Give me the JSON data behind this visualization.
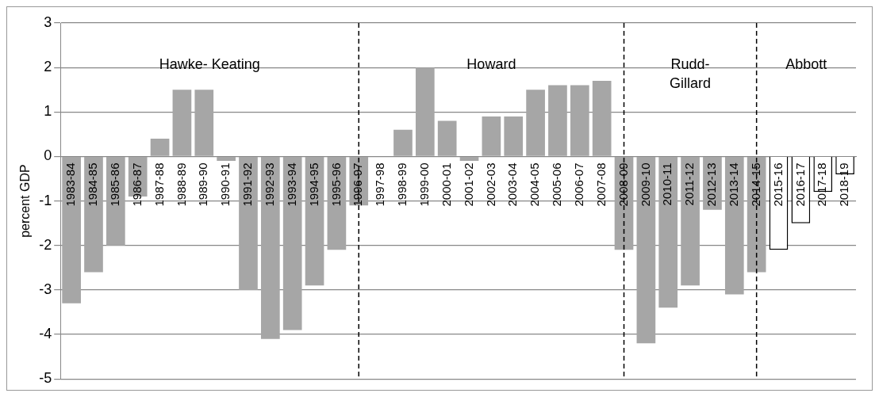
{
  "chart_data": {
    "type": "bar",
    "ylabel": "percent GDP",
    "categories": [
      "1983-84",
      "1984-85",
      "1985-86",
      "1986-87",
      "1987-88",
      "1988-89",
      "1989-90",
      "1990-91",
      "1991-92",
      "1992-93",
      "1993-94",
      "1994-95",
      "1995-96",
      "1996-97",
      "1997-98",
      "1998-99",
      "1999-00",
      "2000-01",
      "2001-02",
      "2002-03",
      "2003-04",
      "2004-05",
      "2005-06",
      "2006-07",
      "2007-08",
      "2008-09",
      "2009-10",
      "2010-11",
      "2011-12",
      "2012-13",
      "2013-14",
      "2014-15",
      "2015-16",
      "2016-17",
      "2017-18",
      "2018-19"
    ],
    "values": [
      -3.3,
      -2.6,
      -2.0,
      -0.9,
      0.4,
      1.5,
      1.5,
      -0.1,
      -3.0,
      -4.1,
      -3.9,
      -2.9,
      -2.1,
      -1.1,
      0,
      0.6,
      2.0,
      0.8,
      -0.1,
      0.9,
      0.9,
      1.5,
      1.6,
      1.6,
      1.7,
      -2.1,
      -4.2,
      -3.4,
      -2.9,
      -1.2,
      -3.1,
      -2.6,
      -2.1,
      -1.5,
      -0.8,
      -0.4
    ],
    "color": "#a6a6a6",
    "colors": [
      "#a6a6a6",
      "#a6a6a6",
      "#a6a6a6",
      "#a6a6a6",
      "#a6a6a6",
      "#a6a6a6",
      "#a6a6a6",
      "#a6a6a6",
      "#a6a6a6",
      "#a6a6a6",
      "#a6a6a6",
      "#a6a6a6",
      "#a6a6a6",
      "#a6a6a6",
      "#a6a6a6",
      "#a6a6a6",
      "#a6a6a6",
      "#a6a6a6",
      "#a6a6a6",
      "#a6a6a6",
      "#a6a6a6",
      "#a6a6a6",
      "#a6a6a6",
      "#a6a6a6",
      "#a6a6a6",
      "#a6a6a6",
      "#a6a6a6",
      "#a6a6a6",
      "#a6a6a6",
      "#a6a6a6",
      "#a6a6a6",
      "#a6a6a6",
      "#ffffff",
      "#ffffff",
      "#ffffff",
      "#ffffff"
    ],
    "ylim": [
      -5,
      3
    ],
    "yticks": [
      -5,
      -4,
      -3,
      -2,
      -1,
      0,
      1,
      2,
      3
    ],
    "grid": "y",
    "legend": false,
    "ref_lines": [
      {
        "axis": "x",
        "value": "1996-97",
        "color": "#000000",
        "line_style": "dashed"
      },
      {
        "axis": "x",
        "value": "2008-09",
        "color": "#000000",
        "line_style": "dashed"
      },
      {
        "axis": "x",
        "value": "2014-15",
        "color": "#000000",
        "line_style": "dashed"
      }
    ],
    "annotations": [
      "Hawke- Keating",
      "Howard",
      "Rudd-\nGillard",
      "Abbott"
    ]
  }
}
